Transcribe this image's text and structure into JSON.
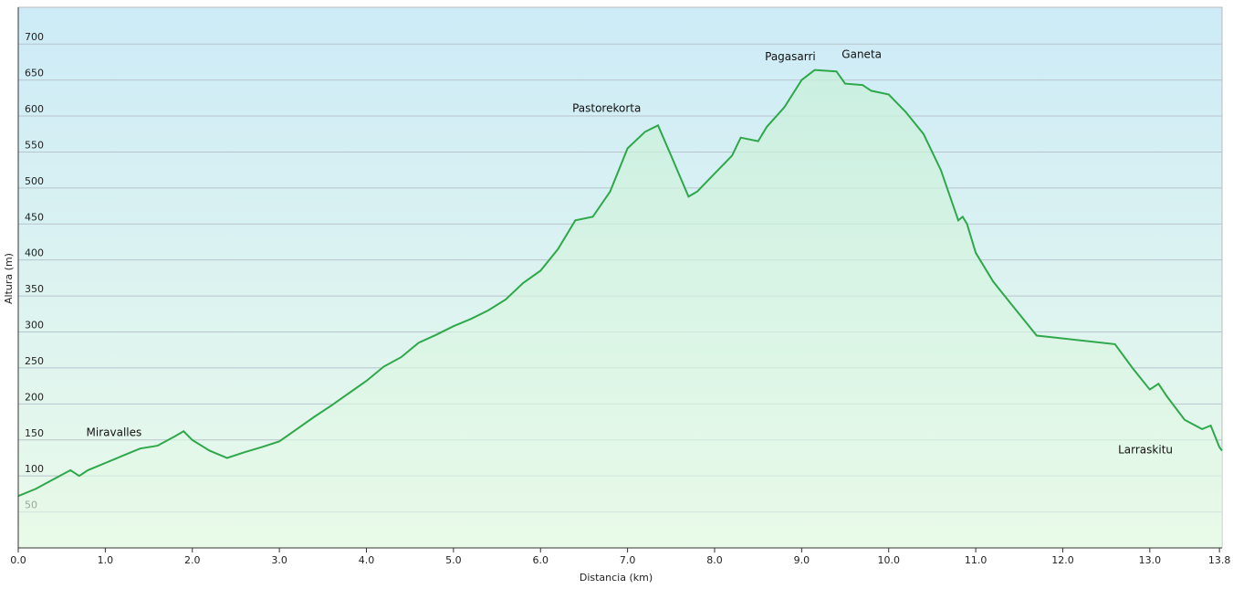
{
  "chart_data": {
    "type": "line",
    "xlabel": "Distancia  (km)",
    "ylabel": "Altura (m)",
    "color": "#2ea84a",
    "grid": true,
    "x": [
      0.0,
      0.2,
      0.4,
      0.6,
      0.7,
      0.8,
      1.0,
      1.2,
      1.4,
      1.6,
      1.8,
      1.9,
      2.0,
      2.2,
      2.4,
      2.6,
      2.8,
      3.0,
      3.2,
      3.4,
      3.6,
      3.8,
      4.0,
      4.2,
      4.4,
      4.6,
      4.8,
      5.0,
      5.2,
      5.4,
      5.6,
      5.8,
      6.0,
      6.2,
      6.4,
      6.6,
      6.8,
      7.0,
      7.2,
      7.35,
      7.5,
      7.7,
      7.8,
      8.0,
      8.2,
      8.3,
      8.5,
      8.6,
      8.8,
      9.0,
      9.15,
      9.4,
      9.5,
      9.7,
      9.8,
      10.0,
      10.2,
      10.4,
      10.6,
      10.8,
      10.85,
      10.9,
      11.0,
      11.2,
      11.4,
      11.6,
      11.7,
      12.6,
      12.8,
      13.0,
      13.1,
      13.2,
      13.4,
      13.6,
      13.7,
      13.8,
      13.83
    ],
    "values": [
      72,
      82,
      95,
      108,
      100,
      108,
      118,
      128,
      138,
      142,
      155,
      162,
      150,
      135,
      125,
      133,
      140,
      148,
      165,
      182,
      198,
      215,
      232,
      252,
      265,
      285,
      296,
      308,
      318,
      330,
      345,
      368,
      385,
      415,
      455,
      460,
      495,
      555,
      578,
      587,
      545,
      488,
      495,
      520,
      545,
      570,
      565,
      585,
      612,
      650,
      664,
      662,
      645,
      643,
      635,
      630,
      605,
      575,
      525,
      455,
      460,
      450,
      410,
      370,
      340,
      310,
      295,
      283,
      250,
      220,
      228,
      210,
      178,
      165,
      170,
      140,
      135
    ],
    "xlim": [
      0,
      13.83
    ],
    "ylim": [
      0,
      751
    ],
    "xticks": [
      {
        "value": 0,
        "label": "0.0"
      },
      {
        "value": 1,
        "label": "1.0"
      },
      {
        "value": 2,
        "label": "2.0"
      },
      {
        "value": 3,
        "label": "3.0"
      },
      {
        "value": 4,
        "label": "4.0"
      },
      {
        "value": 5,
        "label": "5.0"
      },
      {
        "value": 6,
        "label": "6.0"
      },
      {
        "value": 7,
        "label": "7.0"
      },
      {
        "value": 8,
        "label": "8.0"
      },
      {
        "value": 9,
        "label": "9.0"
      },
      {
        "value": 10,
        "label": "10.0"
      },
      {
        "value": 11,
        "label": "11.0"
      },
      {
        "value": 12,
        "label": "12.0"
      },
      {
        "value": 13,
        "label": "13.0"
      },
      13.8
    ],
    "yticks": [
      50,
      100,
      150,
      200,
      250,
      300,
      350,
      400,
      450,
      500,
      550,
      600,
      650,
      700
    ],
    "annotations": [
      {
        "text": "Miravalles",
        "x": 1.1,
        "y": 160
      },
      {
        "text": "Pastorekorta",
        "x": 6.76,
        "y": 610
      },
      {
        "text": "Pagasarri",
        "x": 8.87,
        "y": 682
      },
      {
        "text": "Ganeta",
        "x": 9.69,
        "y": 685
      },
      {
        "text": "Larraskitu",
        "x": 12.95,
        "y": 136
      }
    ]
  }
}
